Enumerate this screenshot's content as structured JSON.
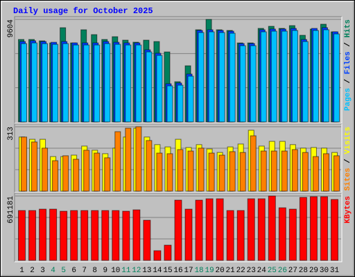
{
  "chart_data": [
    {
      "type": "bar",
      "title": "Daily usage for October 2025",
      "ylim": [
        0,
        9604
      ],
      "yticks": [
        9604
      ],
      "legend_separator": "/",
      "series": [
        {
          "name": "Hits",
          "color": "#00805c",
          "values": [
            7723,
            7723,
            7593,
            7399,
            8826,
            7399,
            8632,
            8177,
            7723,
            7983,
            7658,
            7464,
            7658,
            7528,
            6555,
            3764,
            5257,
            8632,
            9604,
            8632,
            8567,
            7399,
            7399,
            8762,
            8956,
            8762,
            9021,
            8113,
            8697,
            9151,
            8437
          ]
        },
        {
          "name": "Files",
          "color": "#0040ff",
          "values": [
            7530,
            7600,
            7530,
            7460,
            7530,
            7400,
            7400,
            7400,
            7530,
            7460,
            7400,
            7400,
            6750,
            6430,
            3570,
            3640,
            4480,
            8570,
            8630,
            8570,
            8500,
            7340,
            7340,
            8630,
            8700,
            8700,
            8760,
            7720,
            8760,
            8830,
            8440
          ]
        },
        {
          "name": "Pages",
          "color": "#00c0ff",
          "values": [
            7334,
            7399,
            7334,
            7269,
            7334,
            7204,
            7204,
            7204,
            7334,
            7269,
            7204,
            7204,
            6555,
            6230,
            3375,
            3440,
            4283,
            8372,
            8437,
            8372,
            8307,
            7139,
            7139,
            8437,
            8502,
            8502,
            8567,
            7528,
            8567,
            8632,
            8242
          ]
        }
      ]
    },
    {
      "type": "bar",
      "ylim": [
        0,
        313
      ],
      "yticks": [
        313
      ],
      "legend_separator": "/",
      "series": [
        {
          "name": "Visits",
          "color": "#ffff00",
          "values": [
            263,
            252,
            252,
            168,
            168,
            175,
            219,
            199,
            182,
            209,
            263,
            306,
            263,
            226,
            215,
            252,
            212,
            226,
            205,
            188,
            215,
            229,
            296,
            219,
            242,
            242,
            226,
            209,
            212,
            209,
            188
          ]
        },
        {
          "name": "Sites",
          "color": "#ff8000",
          "values": [
            263,
            239,
            209,
            148,
            172,
            155,
            199,
            185,
            162,
            289,
            306,
            313,
            246,
            185,
            182,
            202,
            195,
            209,
            185,
            175,
            192,
            188,
            269,
            195,
            195,
            195,
            202,
            188,
            168,
            182,
            172
          ]
        }
      ]
    },
    {
      "type": "bar",
      "ylim": [
        0,
        691181
      ],
      "yticks": [
        691181
      ],
      "categories": [
        "1",
        "2",
        "3",
        "4",
        "5",
        "6",
        "7",
        "8",
        "9",
        "10",
        "11",
        "12",
        "13",
        "14",
        "15",
        "16",
        "17",
        "18",
        "19",
        "20",
        "21",
        "22",
        "23",
        "24",
        "25",
        "26",
        "27",
        "28",
        "29",
        "30",
        "31"
      ],
      "category_colors": [
        "#000000",
        "#000000",
        "#000000",
        "#00805c",
        "#00805c",
        "#000000",
        "#000000",
        "#000000",
        "#000000",
        "#000000",
        "#00805c",
        "#00805c",
        "#000000",
        "#000000",
        "#000000",
        "#000000",
        "#000000",
        "#00805c",
        "#00805c",
        "#000000",
        "#000000",
        "#000000",
        "#000000",
        "#000000",
        "#00805c",
        "#00805c",
        "#000000",
        "#000000",
        "#000000",
        "#000000",
        "#000000"
      ],
      "series": [
        {
          "name": "KBytes",
          "color": "#ff0000",
          "values": [
            535104,
            535104,
            549968,
            549968,
            527672,
            535104,
            535104,
            535104,
            535104,
            535104,
            527672,
            542536,
            431056,
            104048,
            163504,
            646584,
            549968,
            646584,
            661448,
            661448,
            535104,
            535104,
            661448,
            661448,
            691181,
            564832,
            549968,
            676312,
            683744,
            683744,
            654016
          ]
        }
      ]
    }
  ]
}
